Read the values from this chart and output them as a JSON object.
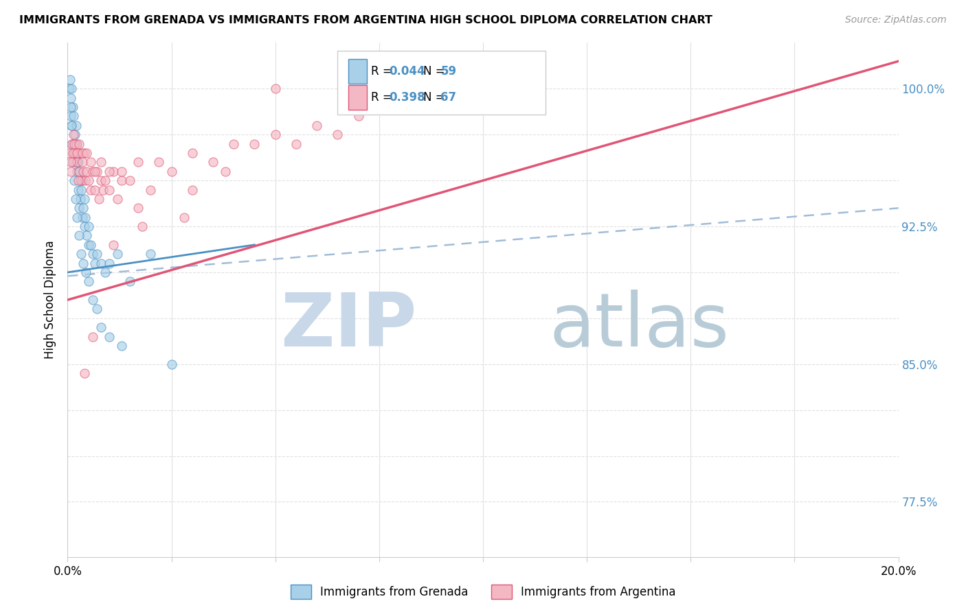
{
  "title": "IMMIGRANTS FROM GRENADA VS IMMIGRANTS FROM ARGENTINA HIGH SCHOOL DIPLOMA CORRELATION CHART",
  "source": "Source: ZipAtlas.com",
  "ylabel": "High School Diploma",
  "series1_label": "Immigrants from Grenada",
  "series2_label": "Immigrants from Argentina",
  "color1": "#a8d0e8",
  "color2": "#f4b8c4",
  "line1_color": "#4a90c4",
  "line2_color": "#e05575",
  "dashed_line_color": "#a0bcd8",
  "watermark_zip_color": "#c8d8e8",
  "watermark_atlas_color": "#b8ccd8",
  "legend_r1": "0.044",
  "legend_n1": "59",
  "legend_r2": "0.398",
  "legend_n2": "67",
  "xlim": [
    0.0,
    20.0
  ],
  "ylim": [
    74.5,
    102.5
  ],
  "ytick_vals": [
    77.5,
    80.0,
    82.5,
    85.0,
    87.5,
    90.0,
    92.5,
    95.0,
    97.5,
    100.0
  ],
  "ytick_show": [
    "77.5%",
    "",
    "",
    "85.0%",
    "",
    "",
    "92.5%",
    "",
    "",
    "100.0%"
  ],
  "grenada_x": [
    0.05,
    0.08,
    0.08,
    0.1,
    0.1,
    0.12,
    0.12,
    0.15,
    0.15,
    0.18,
    0.2,
    0.2,
    0.22,
    0.22,
    0.25,
    0.25,
    0.28,
    0.28,
    0.3,
    0.3,
    0.32,
    0.35,
    0.35,
    0.38,
    0.4,
    0.4,
    0.42,
    0.45,
    0.5,
    0.5,
    0.55,
    0.6,
    0.65,
    0.7,
    0.8,
    0.9,
    1.0,
    1.2,
    1.5,
    2.0,
    0.06,
    0.07,
    0.09,
    0.11,
    0.13,
    0.16,
    0.19,
    0.23,
    0.27,
    0.32,
    0.38,
    0.44,
    0.5,
    0.6,
    0.7,
    0.8,
    1.0,
    1.3,
    2.5
  ],
  "grenada_y": [
    100.0,
    99.5,
    98.5,
    100.0,
    98.0,
    99.0,
    97.0,
    98.5,
    96.5,
    97.5,
    96.0,
    98.0,
    95.5,
    97.0,
    96.0,
    94.5,
    95.5,
    93.5,
    95.0,
    94.0,
    94.5,
    93.0,
    95.0,
    93.5,
    94.0,
    92.5,
    93.0,
    92.0,
    92.5,
    91.5,
    91.5,
    91.0,
    90.5,
    91.0,
    90.5,
    90.0,
    90.5,
    91.0,
    89.5,
    91.0,
    100.5,
    99.0,
    98.0,
    97.0,
    96.0,
    95.0,
    94.0,
    93.0,
    92.0,
    91.0,
    90.5,
    90.0,
    89.5,
    88.5,
    88.0,
    87.0,
    86.5,
    86.0,
    85.0
  ],
  "argentina_x": [
    0.05,
    0.08,
    0.1,
    0.12,
    0.15,
    0.18,
    0.2,
    0.22,
    0.25,
    0.28,
    0.3,
    0.32,
    0.35,
    0.38,
    0.4,
    0.42,
    0.45,
    0.5,
    0.55,
    0.6,
    0.65,
    0.7,
    0.75,
    0.8,
    0.85,
    0.9,
    1.0,
    1.1,
    1.2,
    1.3,
    1.5,
    1.7,
    2.0,
    2.5,
    3.0,
    3.5,
    4.0,
    5.0,
    6.0,
    7.0,
    0.08,
    0.12,
    0.16,
    0.22,
    0.28,
    0.35,
    0.45,
    0.55,
    0.65,
    0.8,
    1.0,
    1.3,
    1.7,
    2.2,
    3.0,
    4.5,
    6.5,
    5.5,
    3.8,
    2.8,
    1.8,
    1.1,
    0.6,
    0.4,
    0.25,
    5.0,
    10.0
  ],
  "argentina_y": [
    96.5,
    95.5,
    97.0,
    96.0,
    97.5,
    96.5,
    97.0,
    96.0,
    96.5,
    95.5,
    96.5,
    95.0,
    96.0,
    95.5,
    96.5,
    95.0,
    95.5,
    95.0,
    94.5,
    95.5,
    94.5,
    95.5,
    94.0,
    95.0,
    94.5,
    95.0,
    94.5,
    95.5,
    94.0,
    95.0,
    95.0,
    93.5,
    94.5,
    95.5,
    94.5,
    96.0,
    97.0,
    97.5,
    98.0,
    98.5,
    96.0,
    96.5,
    97.0,
    96.5,
    97.0,
    96.5,
    96.5,
    96.0,
    95.5,
    96.0,
    95.5,
    95.5,
    96.0,
    96.0,
    96.5,
    97.0,
    97.5,
    97.0,
    95.5,
    93.0,
    92.5,
    91.5,
    86.5,
    84.5,
    95.0,
    100.0,
    101.5
  ],
  "blue_line_x0": 0.0,
  "blue_line_x1": 4.5,
  "blue_line_y0": 90.0,
  "blue_line_y1": 91.5,
  "pink_line_x0": 0.0,
  "pink_line_x1": 20.0,
  "pink_line_y0": 88.5,
  "pink_line_y1": 101.5,
  "dash_line_x0": 0.0,
  "dash_line_x1": 20.0,
  "dash_line_y0": 89.8,
  "dash_line_y1": 93.5
}
